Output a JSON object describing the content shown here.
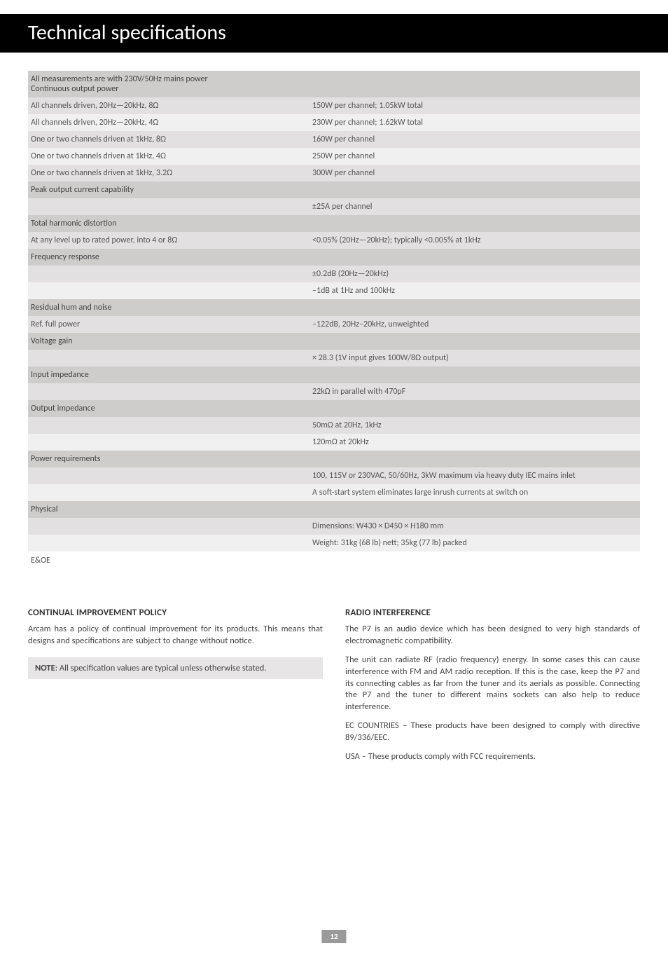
{
  "title": "Technical specifications",
  "intro_line1": "All measurements are with 230V/50Hz mains power",
  "sections": {
    "continuous_output_power": {
      "heading": "Continuous output power",
      "rows": [
        {
          "label": "All channels driven, 20Hz—20kHz, 8Ω",
          "value": "150W per channel; 1.05kW total"
        },
        {
          "label": "All channels driven, 20Hz—20kHz, 4Ω",
          "value": "230W per channel; 1.62kW total"
        },
        {
          "label": "One or two channels driven at 1kHz, 8Ω",
          "value": "160W per channel"
        },
        {
          "label": "One or two channels driven at 1kHz, 4Ω",
          "value": "250W per channel"
        },
        {
          "label": "One or two channels driven at 1kHz, 3.2Ω",
          "value": "300W per channel"
        }
      ]
    },
    "peak_output": {
      "heading": "Peak output current capability",
      "rows": [
        {
          "label": "",
          "value": "±25A per channel"
        }
      ]
    },
    "thd": {
      "heading": "Total harmonic distortion",
      "rows": [
        {
          "label": "At any level up to rated power, into 4 or 8Ω",
          "value": "<0.05% (20Hz—20kHz); typically <0.005% at 1kHz"
        }
      ]
    },
    "freq_response": {
      "heading": "Frequency response",
      "rows": [
        {
          "label": "",
          "value": "±0.2dB (20Hz—20kHz)"
        },
        {
          "label": "",
          "value": "–1dB at 1Hz and 100kHz"
        }
      ]
    },
    "residual": {
      "heading": "Residual hum and noise",
      "rows": [
        {
          "label": "Ref. full power",
          "value": "–122dB, 20Hz–20kHz, unweighted"
        }
      ]
    },
    "voltage_gain": {
      "heading": "Voltage gain",
      "rows": [
        {
          "label": "",
          "value": "× 28.3 (1V input gives 100W/8Ω output)"
        }
      ]
    },
    "input_impedance": {
      "heading": "Input impedance",
      "rows": [
        {
          "label": "",
          "value": "22kΩ in parallel with 470pF"
        }
      ]
    },
    "output_impedance": {
      "heading": "Output impedance",
      "rows": [
        {
          "label": "",
          "value": "50mΩ at 20Hz, 1kHz"
        },
        {
          "label": "",
          "value": "120mΩ at 20kHz"
        }
      ]
    },
    "power_req": {
      "heading": "Power requirements",
      "rows": [
        {
          "label": "",
          "value": "100, 115V or 230VAC, 50/60Hz, 3kW maximum via heavy duty IEC mains inlet"
        },
        {
          "label": "",
          "value": "A soft-start system eliminates large inrush currents at switch on"
        }
      ]
    },
    "physical": {
      "heading": "Physical",
      "rows": [
        {
          "label": "",
          "value": "Dimensions: W430 × D450 × H180 mm"
        },
        {
          "label": "",
          "value": "Weight: 31kg (68 lb) nett; 35kg (77 lb) packed"
        }
      ]
    }
  },
  "eoe": "E&OE",
  "left_col": {
    "heading": "CONTINUAL IMPROVEMENT POLICY",
    "p1": "Arcam has a policy of continual improvement for its products. This means that designs and specifications are subject to change without notice.",
    "note_label": "NOTE",
    "note_text": ": All specification values are typical unless otherwise stated."
  },
  "right_col": {
    "heading": "RADIO INTERFERENCE",
    "p1": "The P7 is an audio device which has been designed to very high standards of electromagnetic compatibility.",
    "p2": "The unit can radiate RF (radio frequency) energy. In some cases this can cause interference with FM and AM radio reception. If this is the case, keep the P7 and its connecting cables as far from the tuner and its aerials as possible. Connecting the P7 and the tuner to different mains sockets can also help to reduce interference.",
    "p3": "EC COUNTRIES – These products have been designed to comply with directive 89/336/EEC.",
    "p4": "USA – These products comply with FCC requirements."
  },
  "page_number": "12",
  "shading": {
    "pattern": [
      "row-dark",
      "row-light"
    ],
    "head_class": "section-head"
  }
}
